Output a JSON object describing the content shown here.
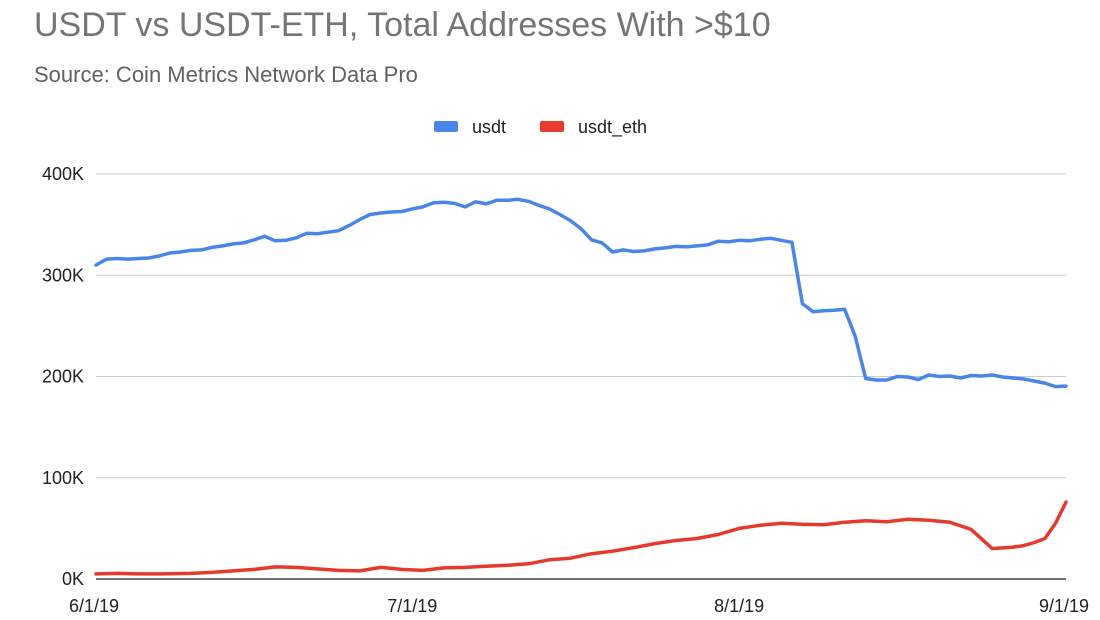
{
  "chart_data": {
    "type": "line",
    "title": "USDT vs USDT-ETH, Total Addresses With >$10",
    "subtitle": "Source: Coin Metrics Network Data Pro",
    "xlabel": "",
    "ylabel": "",
    "x_ticks": [
      "6/1/19",
      "7/1/19",
      "8/1/19",
      "9/1/19"
    ],
    "y_ticks": [
      "0K",
      "100K",
      "200K",
      "300K",
      "400K"
    ],
    "ylim": [
      0,
      400000
    ],
    "xlim": [
      "2019-06-01",
      "2019-09-01"
    ],
    "grid": true,
    "legend_position": "top",
    "series": [
      {
        "name": "usdt",
        "color": "#4a86e8",
        "points": [
          [
            "2019-06-01",
            310000
          ],
          [
            "2019-06-02",
            316000
          ],
          [
            "2019-06-03",
            316500
          ],
          [
            "2019-06-04",
            316000
          ],
          [
            "2019-06-05",
            316500
          ],
          [
            "2019-06-06",
            317000
          ],
          [
            "2019-06-07",
            319000
          ],
          [
            "2019-06-08",
            322000
          ],
          [
            "2019-06-09",
            323000
          ],
          [
            "2019-06-10",
            324500
          ],
          [
            "2019-06-11",
            325000
          ],
          [
            "2019-06-12",
            327500
          ],
          [
            "2019-06-13",
            329000
          ],
          [
            "2019-06-14",
            331000
          ],
          [
            "2019-06-15",
            332000
          ],
          [
            "2019-06-16",
            335000
          ],
          [
            "2019-06-17",
            338500
          ],
          [
            "2019-06-18",
            334000
          ],
          [
            "2019-06-19",
            334500
          ],
          [
            "2019-06-20",
            337000
          ],
          [
            "2019-06-21",
            341500
          ],
          [
            "2019-06-22",
            341000
          ],
          [
            "2019-06-23",
            342500
          ],
          [
            "2019-06-24",
            344000
          ],
          [
            "2019-06-25",
            349000
          ],
          [
            "2019-06-26",
            355000
          ],
          [
            "2019-06-27",
            360000
          ],
          [
            "2019-06-28",
            361500
          ],
          [
            "2019-06-29",
            362500
          ],
          [
            "2019-06-30",
            363000
          ],
          [
            "2019-07-01",
            365500
          ],
          [
            "2019-07-02",
            367500
          ],
          [
            "2019-07-03",
            371500
          ],
          [
            "2019-07-04",
            372000
          ],
          [
            "2019-07-05",
            371000
          ],
          [
            "2019-07-06",
            367500
          ],
          [
            "2019-07-07",
            372500
          ],
          [
            "2019-07-08",
            370500
          ],
          [
            "2019-07-09",
            374000
          ],
          [
            "2019-07-10",
            374000
          ],
          [
            "2019-07-11",
            375000
          ],
          [
            "2019-07-12",
            373000
          ],
          [
            "2019-07-13",
            369000
          ],
          [
            "2019-07-14",
            365500
          ],
          [
            "2019-07-15",
            360000
          ],
          [
            "2019-07-16",
            354000
          ],
          [
            "2019-07-17",
            346000
          ],
          [
            "2019-07-18",
            335000
          ],
          [
            "2019-07-19",
            332000
          ],
          [
            "2019-07-20",
            323000
          ],
          [
            "2019-07-21",
            325000
          ],
          [
            "2019-07-22",
            323500
          ],
          [
            "2019-07-23",
            324000
          ],
          [
            "2019-07-24",
            326000
          ],
          [
            "2019-07-25",
            327000
          ],
          [
            "2019-07-26",
            328500
          ],
          [
            "2019-07-27",
            328000
          ],
          [
            "2019-07-28",
            329000
          ],
          [
            "2019-07-29",
            330000
          ],
          [
            "2019-07-30",
            333500
          ],
          [
            "2019-07-31",
            333000
          ],
          [
            "2019-08-01",
            334500
          ],
          [
            "2019-08-02",
            334000
          ],
          [
            "2019-08-03",
            335500
          ],
          [
            "2019-08-04",
            336500
          ],
          [
            "2019-08-05",
            334500
          ],
          [
            "2019-08-06",
            332500
          ],
          [
            "2019-08-07",
            272000
          ],
          [
            "2019-08-08",
            264000
          ],
          [
            "2019-08-09",
            265000
          ],
          [
            "2019-08-10",
            265500
          ],
          [
            "2019-08-11",
            266500
          ],
          [
            "2019-08-12",
            240000
          ],
          [
            "2019-08-13",
            198000
          ],
          [
            "2019-08-14",
            196500
          ],
          [
            "2019-08-15",
            196500
          ],
          [
            "2019-08-16",
            200000
          ],
          [
            "2019-08-17",
            199500
          ],
          [
            "2019-08-18",
            197000
          ],
          [
            "2019-08-19",
            201500
          ],
          [
            "2019-08-20",
            200000
          ],
          [
            "2019-08-21",
            200500
          ],
          [
            "2019-08-22",
            198500
          ],
          [
            "2019-08-23",
            201000
          ],
          [
            "2019-08-24",
            200500
          ],
          [
            "2019-08-25",
            201500
          ],
          [
            "2019-08-26",
            199500
          ],
          [
            "2019-08-27",
            198500
          ],
          [
            "2019-08-28",
            197500
          ],
          [
            "2019-08-29",
            195500
          ],
          [
            "2019-08-30",
            193500
          ],
          [
            "2019-08-31",
            190000
          ],
          [
            "2019-09-01",
            190500
          ]
        ]
      },
      {
        "name": "usdt_eth",
        "color": "#e53a2d",
        "points": [
          [
            "2019-06-01",
            5000
          ],
          [
            "2019-06-03",
            5500
          ],
          [
            "2019-06-05",
            5000
          ],
          [
            "2019-06-07",
            5000
          ],
          [
            "2019-06-10",
            5500
          ],
          [
            "2019-06-12",
            6500
          ],
          [
            "2019-06-14",
            8000
          ],
          [
            "2019-06-16",
            9500
          ],
          [
            "2019-06-18",
            12000
          ],
          [
            "2019-06-20",
            11500
          ],
          [
            "2019-06-22",
            10000
          ],
          [
            "2019-06-24",
            8500
          ],
          [
            "2019-06-26",
            8000
          ],
          [
            "2019-06-28",
            11500
          ],
          [
            "2019-06-30",
            9500
          ],
          [
            "2019-07-02",
            8500
          ],
          [
            "2019-07-04",
            11000
          ],
          [
            "2019-07-06",
            11500
          ],
          [
            "2019-07-08",
            12500
          ],
          [
            "2019-07-10",
            13500
          ],
          [
            "2019-07-12",
            15000
          ],
          [
            "2019-07-14",
            19000
          ],
          [
            "2019-07-16",
            20500
          ],
          [
            "2019-07-18",
            25000
          ],
          [
            "2019-07-20",
            27500
          ],
          [
            "2019-07-22",
            31000
          ],
          [
            "2019-07-24",
            35000
          ],
          [
            "2019-07-26",
            38000
          ],
          [
            "2019-07-28",
            40000
          ],
          [
            "2019-07-30",
            44000
          ],
          [
            "2019-08-01",
            50000
          ],
          [
            "2019-08-03",
            53000
          ],
          [
            "2019-08-05",
            55000
          ],
          [
            "2019-08-07",
            54000
          ],
          [
            "2019-08-09",
            53500
          ],
          [
            "2019-08-11",
            56000
          ],
          [
            "2019-08-13",
            57500
          ],
          [
            "2019-08-15",
            56500
          ],
          [
            "2019-08-17",
            59000
          ],
          [
            "2019-08-19",
            58000
          ],
          [
            "2019-08-21",
            56000
          ],
          [
            "2019-08-23",
            49000
          ],
          [
            "2019-08-25",
            30000
          ],
          [
            "2019-08-27",
            31500
          ],
          [
            "2019-08-28",
            33000
          ],
          [
            "2019-08-29",
            36000
          ],
          [
            "2019-08-30",
            40000
          ],
          [
            "2019-08-31",
            55000
          ],
          [
            "2019-09-01",
            76000
          ]
        ]
      }
    ]
  }
}
